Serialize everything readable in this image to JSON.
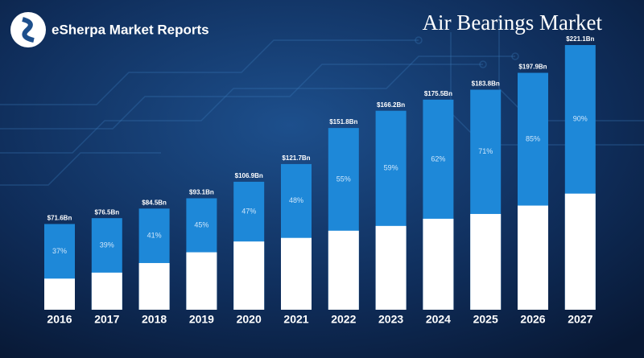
{
  "brand": "eSherpa Market Reports",
  "chart_data": {
    "type": "bar",
    "title": "Air Bearings Market",
    "categories": [
      "2016",
      "2017",
      "2018",
      "2019",
      "2020",
      "2021",
      "2022",
      "2023",
      "2024",
      "2025",
      "2026",
      "2027"
    ],
    "values": [
      71.6,
      76.5,
      84.5,
      93.1,
      106.9,
      121.7,
      151.8,
      166.2,
      175.5,
      183.8,
      197.9,
      221.1
    ],
    "value_labels": [
      "$71.6Bn",
      "$76.5Bn",
      "$84.5Bn",
      "$93.1Bn",
      "$106.9Bn",
      "$121.7Bn",
      "$151.8Bn",
      "$166.2Bn",
      "$175.5Bn",
      "$183.8Bn",
      "$197.9Bn",
      "$221.1Bn"
    ],
    "base_values": [
      26,
      31,
      39,
      48,
      57,
      60,
      66,
      70,
      76,
      80,
      87,
      97
    ],
    "shares": [
      37,
      39,
      41,
      45,
      47,
      48,
      55,
      59,
      62,
      71,
      85,
      90
    ],
    "share_labels": [
      "37%",
      "39%",
      "41%",
      "45%",
      "47%",
      "48%",
      "55%",
      "59%",
      "62%",
      "71%",
      "85%",
      "90%"
    ],
    "color": "#1e88d8",
    "base_color": "#ffffff"
  }
}
